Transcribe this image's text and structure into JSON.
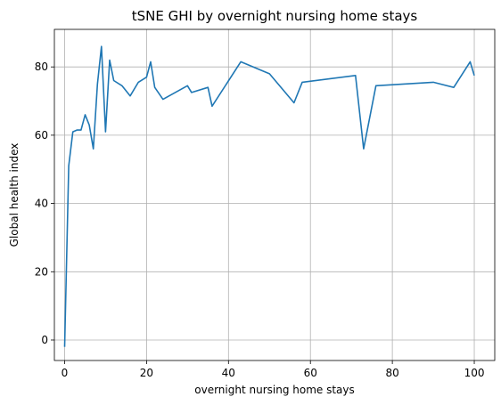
{
  "chart_data": {
    "type": "line",
    "title": "tSNE GHI by overnight nursing home stays",
    "xlabel": "overnight nursing home stays",
    "ylabel": "Global health index",
    "xlim": [
      -2.5,
      105
    ],
    "ylim": [
      -6,
      91
    ],
    "xticks": [
      0,
      20,
      40,
      60,
      80,
      100
    ],
    "yticks": [
      0,
      20,
      40,
      60,
      80
    ],
    "grid": true,
    "line_color": "#1f77b4",
    "series": [
      {
        "x": [
          0,
          1,
          2,
          3,
          4,
          5,
          6,
          7,
          8,
          9,
          10,
          11,
          12,
          14,
          16,
          18,
          20,
          21,
          22,
          24,
          30,
          31,
          35,
          36,
          43,
          50,
          56,
          58,
          71,
          73,
          76,
          90,
          95,
          99,
          100
        ],
        "y": [
          -2,
          51,
          61,
          61.5,
          61.5,
          66,
          63,
          56,
          75,
          86,
          61,
          82,
          76,
          74.5,
          71.5,
          75.5,
          77,
          81.5,
          74,
          70.5,
          74.5,
          72.5,
          74,
          68.5,
          81.5,
          78,
          69.5,
          75.5,
          77.5,
          56,
          74.5,
          75.5,
          74,
          81.5,
          77.5
        ]
      }
    ]
  }
}
